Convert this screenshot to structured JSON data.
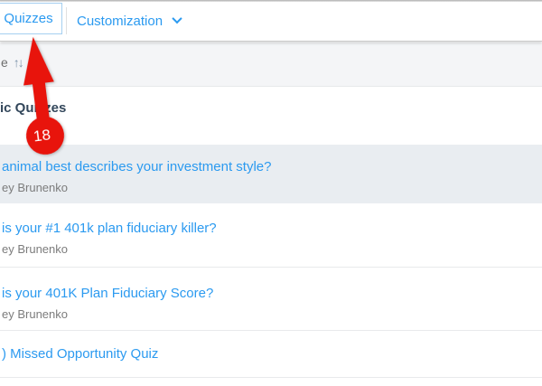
{
  "tabs": {
    "quizzes": "Quizzes",
    "customization": "Customization"
  },
  "toolbar": {
    "sort_label_fragment": "e",
    "sort_icon": "↑↓"
  },
  "section": {
    "heading_fragment": "ic Quizzes"
  },
  "annotation": {
    "step_number": "18"
  },
  "quizzes": [
    {
      "title": "animal best describes your investment style?",
      "author": "ey Brunenko",
      "highlighted": true
    },
    {
      "title": "is your #1 401k plan fiduciary killer?",
      "author": "ey Brunenko",
      "highlighted": false
    },
    {
      "title": "is your 401K Plan Fiduciary Score?",
      "author": "ey Brunenko",
      "highlighted": false
    },
    {
      "title": ") Missed Opportunity Quiz",
      "author": "",
      "highlighted": false
    }
  ],
  "colors": {
    "link_blue": "#2b9af0",
    "heading_text": "#33475b",
    "author_gray": "#7c7c7c",
    "annotation_red": "#e8140c",
    "highlighted_row_bg": "#e9edf1",
    "toolbar_bg": "#f4f5f7",
    "tab_box_border": "#a5cff0"
  }
}
